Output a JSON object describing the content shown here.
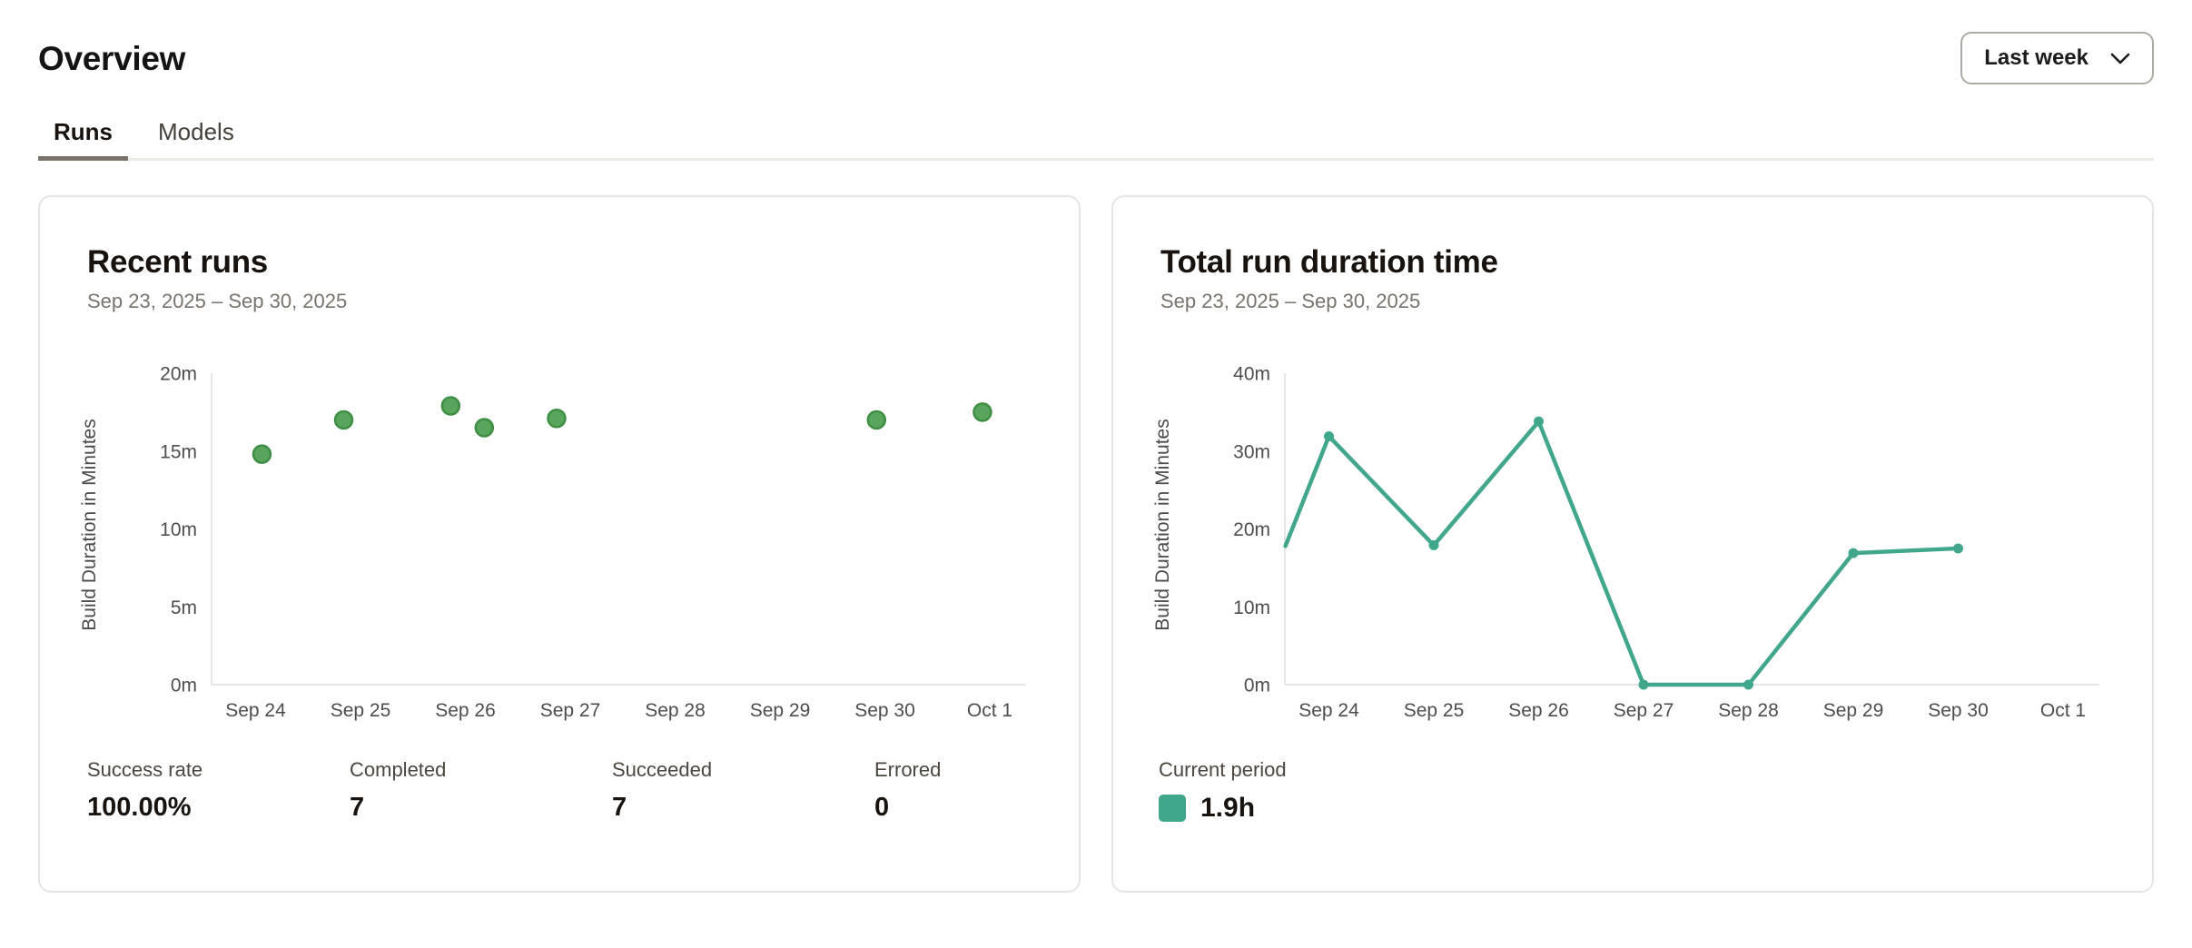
{
  "page": {
    "title": "Overview"
  },
  "period_selector": {
    "label": "Last week",
    "icon": "chevron-down-icon"
  },
  "tabs": [
    {
      "label": "Runs",
      "active": true
    },
    {
      "label": "Models",
      "active": false
    }
  ],
  "cards": [
    {
      "title": "Recent runs",
      "date_range": "Sep 23, 2025 – Sep 30, 2025",
      "stats": [
        {
          "label": "Success rate",
          "value": "100.00%"
        },
        {
          "label": "Completed",
          "value": "7"
        },
        {
          "label": "Succeeded",
          "value": "7"
        },
        {
          "label": "Errored",
          "value": "0"
        }
      ]
    },
    {
      "title": "Total run duration time",
      "date_range": "Sep 23, 2025 – Sep 30, 2025",
      "legend": {
        "label": "Current period",
        "value": "1.9h",
        "color": "#41a78c"
      }
    }
  ],
  "chart_data": [
    {
      "type": "scatter",
      "title": "Recent runs",
      "xlabel": "",
      "ylabel": "Build Duration in Minutes",
      "x_tick_labels": [
        "Sep 24",
        "Sep 25",
        "Sep 26",
        "Sep 27",
        "Sep 28",
        "Sep 29",
        "Sep 30",
        "Oct 1"
      ],
      "y_tick_values": [
        0,
        5,
        10,
        15,
        20
      ],
      "y_tick_labels": [
        "0m",
        "5m",
        "10m",
        "15m",
        "20m"
      ],
      "ylim": [
        0,
        20
      ],
      "x_unit": "days, 0 = Sep 23",
      "points": [
        [
          1.06,
          14.8
        ],
        [
          1.84,
          17.0
        ],
        [
          2.86,
          17.9
        ],
        [
          3.18,
          16.5
        ],
        [
          3.87,
          17.1
        ],
        [
          6.92,
          17.0
        ],
        [
          7.93,
          17.5
        ]
      ],
      "point_color": "#58a55c",
      "point_border_color": "#3e8e44",
      "axis_color": "#e8e6e3",
      "grid": false,
      "legend_position": "none"
    },
    {
      "type": "line",
      "title": "Total run duration time",
      "xlabel": "",
      "ylabel": "Build Duration in Minutes",
      "x_tick_labels": [
        "Sep 24",
        "Sep 25",
        "Sep 26",
        "Sep 27",
        "Sep 28",
        "Sep 29",
        "Sep 30",
        "Oct 1"
      ],
      "y_tick_values": [
        0,
        10,
        20,
        30,
        40
      ],
      "y_tick_labels": [
        "0m",
        "10m",
        "20m",
        "30m",
        "40m"
      ],
      "ylim": [
        0,
        40
      ],
      "x_unit": "days, 0 = Sep 23",
      "points": [
        [
          0.585,
          17.8
        ],
        [
          1,
          31.9
        ],
        [
          2,
          17.9
        ],
        [
          3,
          33.8
        ],
        [
          4,
          0
        ],
        [
          5,
          0
        ],
        [
          6,
          16.9
        ],
        [
          7,
          17.5
        ]
      ],
      "marker_start_index": 1,
      "line_color": "#41a78c",
      "axis_color": "#e8e6e3",
      "grid": false,
      "legend_position": "below",
      "series_name": "Current period",
      "series_total": "1.9h"
    }
  ]
}
